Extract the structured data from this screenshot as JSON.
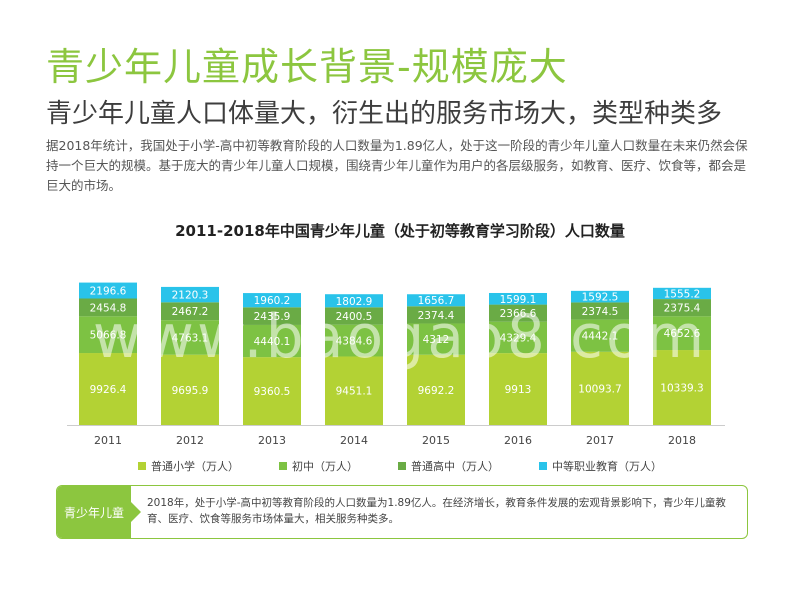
{
  "header": {
    "title": "青少年儿童成长背景-规模庞大",
    "subtitle": "青少年儿童人口体量大，衍生出的服务市场大，类型种类多",
    "intro": "据2018年统计，我国处于小学-高中初等教育阶段的人口数量为1.89亿人，处于这一阶段的青少年儿童人口数量在未来仍然会保持一个巨大的规模。基于庞大的青少年儿童人口规模，围绕青少年儿童作为用户的各层级服务，如教育、医疗、饮食等，都会是巨大的市场。"
  },
  "watermark": "www.baogao8.com",
  "colors": {
    "accent": "#8cc63f",
    "series": [
      "#b3d234",
      "#7dc243",
      "#6aab45",
      "#29c3ea"
    ]
  },
  "chart_data": {
    "type": "bar",
    "stacked": true,
    "title": "2011-2018年中国青少年儿童（处于初等教育学习阶段）人口数量",
    "categories": [
      "2011",
      "2012",
      "2013",
      "2014",
      "2015",
      "2016",
      "2017",
      "2018"
    ],
    "series": [
      {
        "name": "普通小学（万人）",
        "values": [
          9926.4,
          9695.9,
          9360.5,
          9451.1,
          9692.2,
          9913,
          10093.7,
          10339.3
        ]
      },
      {
        "name": "初中（万人）",
        "values": [
          5066.8,
          4763.1,
          4440.1,
          4384.6,
          4312,
          4329.4,
          4442.1,
          4652.6
        ]
      },
      {
        "name": "普通高中（万人）",
        "values": [
          2454.8,
          2467.2,
          2435.9,
          2400.5,
          2374.4,
          2366.6,
          2374.5,
          2375.4
        ]
      },
      {
        "name": "中等职业教育（万人）",
        "values": [
          2196.6,
          2120.3,
          1960.2,
          1802.9,
          1656.7,
          1599.1,
          1592.5,
          1555.2
        ]
      }
    ],
    "ylim": [
      0,
      20000
    ]
  },
  "note": {
    "label": "青少年儿童",
    "text": "2018年，处于小学-高中初等教育阶段的人口数量为1.89亿人。在经济增长，教育条件发展的宏观背景影响下，青少年儿童教育、医疗、饮食等服务市场体量大，相关服务种类多。"
  }
}
